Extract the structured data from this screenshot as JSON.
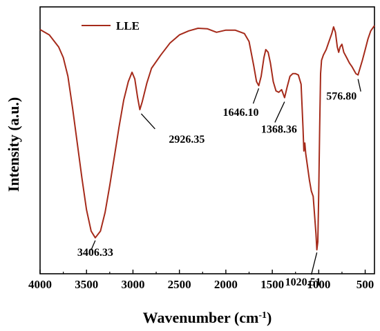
{
  "chart_data": {
    "type": "line",
    "xlabel_main": "Wavenumber (cm",
    "xlabel_sup": "-1",
    "xlabel_close": ")",
    "ylabel": "Intensity (a.u.)",
    "xlim": [
      4000,
      400
    ],
    "x_reversed": true,
    "y_ticks_shown": false,
    "x_ticks": [
      4000,
      3500,
      3000,
      2500,
      2000,
      1500,
      1000,
      500
    ],
    "legend": {
      "position": "top-left"
    },
    "series": [
      {
        "name": "LLE",
        "color": "#a52a1a",
        "points": [
          [
            4000,
            0.915
          ],
          [
            3900,
            0.895
          ],
          [
            3800,
            0.85
          ],
          [
            3750,
            0.81
          ],
          [
            3700,
            0.74
          ],
          [
            3650,
            0.62
          ],
          [
            3600,
            0.49
          ],
          [
            3550,
            0.36
          ],
          [
            3500,
            0.24
          ],
          [
            3450,
            0.16
          ],
          [
            3406,
            0.135
          ],
          [
            3350,
            0.16
          ],
          [
            3300,
            0.23
          ],
          [
            3250,
            0.33
          ],
          [
            3200,
            0.44
          ],
          [
            3150,
            0.55
          ],
          [
            3100,
            0.65
          ],
          [
            3050,
            0.72
          ],
          [
            3010,
            0.755
          ],
          [
            2980,
            0.73
          ],
          [
            2950,
            0.66
          ],
          [
            2926,
            0.615
          ],
          [
            2900,
            0.645
          ],
          [
            2850,
            0.715
          ],
          [
            2800,
            0.77
          ],
          [
            2700,
            0.82
          ],
          [
            2600,
            0.865
          ],
          [
            2500,
            0.895
          ],
          [
            2400,
            0.91
          ],
          [
            2300,
            0.92
          ],
          [
            2200,
            0.918
          ],
          [
            2100,
            0.905
          ],
          [
            2000,
            0.913
          ],
          [
            1900,
            0.913
          ],
          [
            1800,
            0.9
          ],
          [
            1750,
            0.87
          ],
          [
            1700,
            0.78
          ],
          [
            1670,
            0.72
          ],
          [
            1646,
            0.705
          ],
          [
            1620,
            0.74
          ],
          [
            1590,
            0.81
          ],
          [
            1570,
            0.84
          ],
          [
            1545,
            0.83
          ],
          [
            1520,
            0.79
          ],
          [
            1490,
            0.72
          ],
          [
            1460,
            0.685
          ],
          [
            1430,
            0.68
          ],
          [
            1400,
            0.69
          ],
          [
            1368,
            0.66
          ],
          [
            1340,
            0.7
          ],
          [
            1310,
            0.74
          ],
          [
            1280,
            0.75
          ],
          [
            1250,
            0.75
          ],
          [
            1220,
            0.745
          ],
          [
            1190,
            0.71
          ],
          [
            1170,
            0.55
          ],
          [
            1160,
            0.46
          ],
          [
            1150,
            0.49
          ],
          [
            1140,
            0.45
          ],
          [
            1120,
            0.4
          ],
          [
            1100,
            0.35
          ],
          [
            1080,
            0.31
          ],
          [
            1060,
            0.29
          ],
          [
            1045,
            0.22
          ],
          [
            1030,
            0.15
          ],
          [
            1020,
            0.09
          ],
          [
            1010,
            0.12
          ],
          [
            1000,
            0.3
          ],
          [
            990,
            0.55
          ],
          [
            980,
            0.75
          ],
          [
            970,
            0.8
          ],
          [
            950,
            0.82
          ],
          [
            920,
            0.84
          ],
          [
            890,
            0.87
          ],
          [
            860,
            0.9
          ],
          [
            840,
            0.925
          ],
          [
            820,
            0.905
          ],
          [
            800,
            0.85
          ],
          [
            785,
            0.83
          ],
          [
            770,
            0.85
          ],
          [
            750,
            0.86
          ],
          [
            730,
            0.83
          ],
          [
            700,
            0.81
          ],
          [
            670,
            0.79
          ],
          [
            640,
            0.775
          ],
          [
            600,
            0.75
          ],
          [
            577,
            0.745
          ],
          [
            560,
            0.765
          ],
          [
            530,
            0.8
          ],
          [
            500,
            0.84
          ],
          [
            470,
            0.88
          ],
          [
            440,
            0.91
          ],
          [
            400,
            0.93
          ]
        ]
      }
    ],
    "annotations": [
      {
        "text": "3406.33",
        "x": 3406,
        "y": 0.135
      },
      {
        "text": "2926.35",
        "x": 2926,
        "y": 0.615
      },
      {
        "text": "1646.10",
        "x": 1646,
        "y": 0.705
      },
      {
        "text": "1368.36",
        "x": 1368,
        "y": 0.66
      },
      {
        "text": "1020.51",
        "x": 1020,
        "y": 0.09
      },
      {
        "text": "576.80",
        "x": 577,
        "y": 0.745
      }
    ]
  }
}
